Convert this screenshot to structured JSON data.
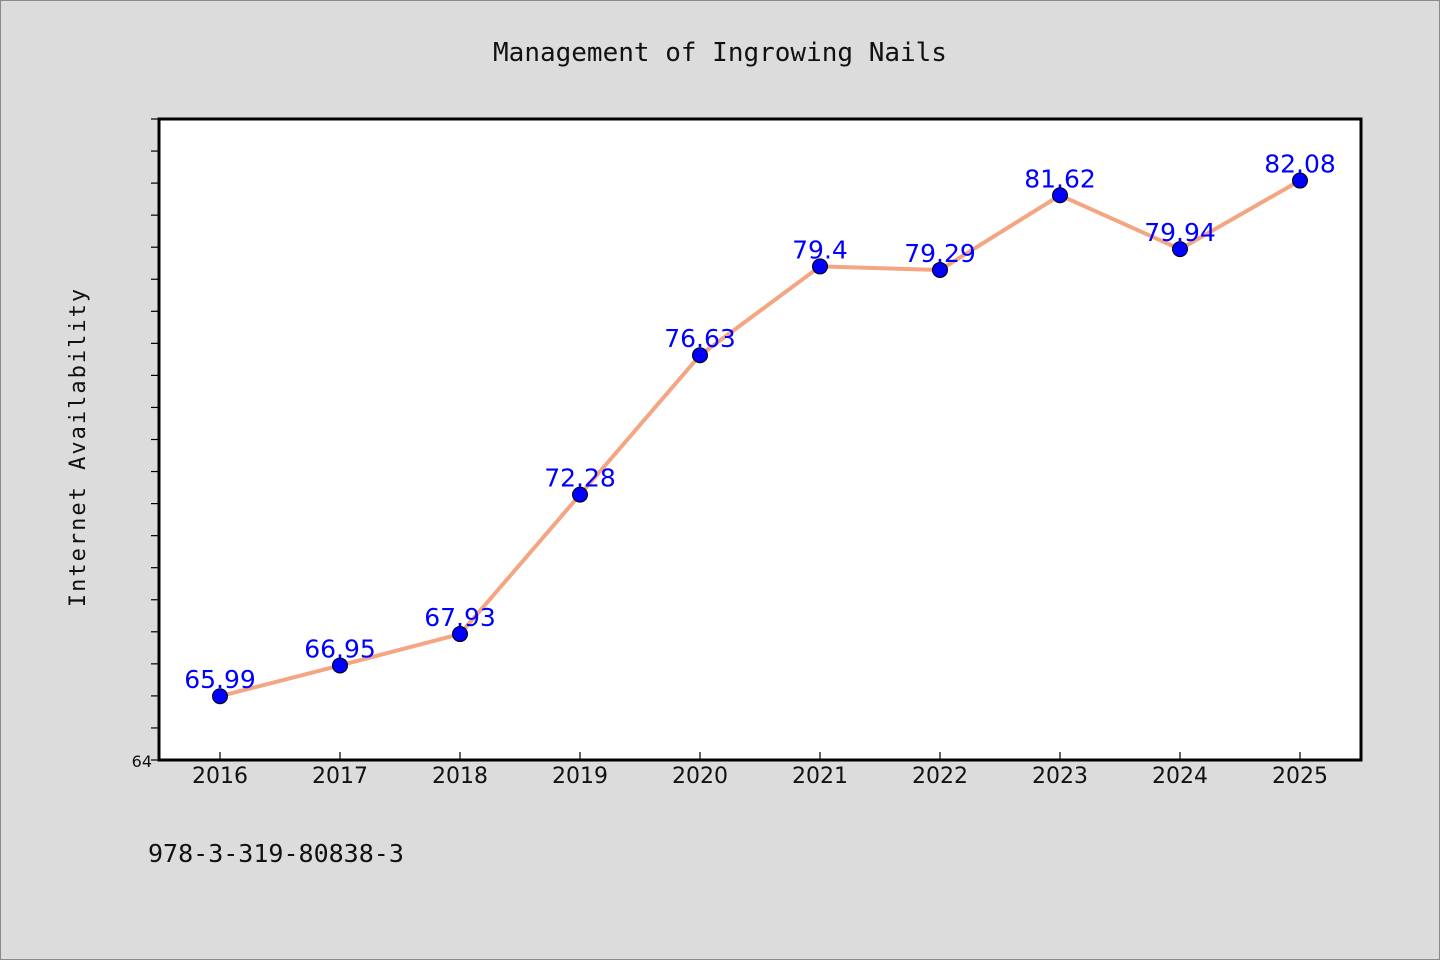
{
  "chart_data": {
    "type": "line",
    "title": "Management of Ingrowing Nails",
    "xlabel": "",
    "ylabel": "Internet Availability",
    "categories": [
      "2016",
      "2017",
      "2018",
      "2019",
      "2020",
      "2021",
      "2022",
      "2023",
      "2024",
      "2025"
    ],
    "series": [
      {
        "values": [
          65.99,
          66.95,
          67.93,
          72.28,
          76.63,
          79.4,
          79.29,
          81.62,
          79.94,
          82.08
        ],
        "data_labels": [
          "65.99",
          "66.95",
          "67.93",
          "72.28",
          "76.63",
          "79.4",
          "79.29",
          "81.62",
          "79.94",
          "82.08"
        ],
        "line_color": "#f4a582",
        "marker_color": "#0000ff",
        "label_color": "#0000ff"
      }
    ],
    "ylim": [
      64,
      84
    ],
    "yticks_labeled": [
      "64"
    ],
    "grid": false,
    "legend": "none"
  },
  "footer": {
    "isbn": "978-3-319-80838-3"
  },
  "colors": {
    "background": "#dcdcdc",
    "plot_background": "#ffffff",
    "line": "#f4a582",
    "marker": "#0000ff",
    "data_label": "#0000ff"
  }
}
